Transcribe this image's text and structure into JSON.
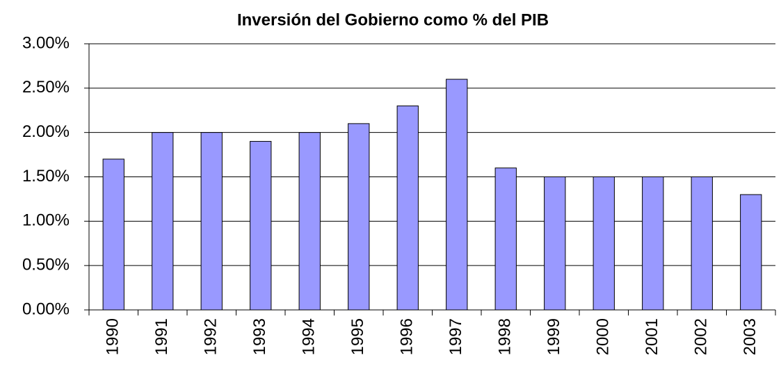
{
  "chart_data": {
    "type": "bar",
    "title": "Inversión del Gobierno como % del PIB",
    "categories": [
      "1990",
      "1991",
      "1992",
      "1993",
      "1994",
      "1995",
      "1996",
      "1997",
      "1998",
      "1999",
      "2000",
      "2001",
      "2002",
      "2003"
    ],
    "values": [
      1.7,
      2.0,
      2.0,
      1.9,
      2.0,
      2.1,
      2.3,
      2.6,
      1.6,
      1.5,
      1.5,
      1.5,
      1.5,
      1.3
    ],
    "color": "#9999ff",
    "ylim": [
      0,
      3
    ],
    "yticks": [
      {
        "value": 0,
        "label": "0.00%"
      },
      {
        "value": 0.5,
        "label": "0.50%"
      },
      {
        "value": 1,
        "label": "1.00%"
      },
      {
        "value": 1.5,
        "label": "1.50%"
      },
      {
        "value": 2,
        "label": "2.00%"
      },
      {
        "value": 2.5,
        "label": "2.50%"
      },
      {
        "value": 3,
        "label": "3.00%"
      }
    ],
    "grid": true
  }
}
